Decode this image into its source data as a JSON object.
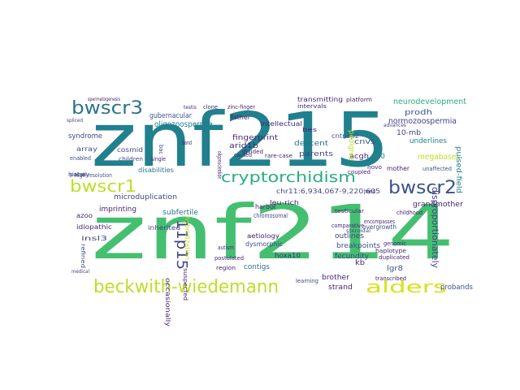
{
  "palette": {
    "teal": "#21808d",
    "green": "#44bf70",
    "lime": "#bddf26",
    "blue": "#2c728e",
    "purple": "#482475",
    "indigo": "#3b528b",
    "dark": "#414487",
    "mint": "#5ec962",
    "yellow": "#d8e219",
    "seagreen": "#28ae80"
  },
  "words": [
    "znf215",
    "znf214",
    "beckwith-wiedemann",
    "bwscr3",
    "bwscr1",
    "bwscr2",
    "cryptorchidism",
    "alders",
    "11p15",
    "disproportionately",
    "neurodevelopment",
    "normozoospermia",
    "oligozoospermia",
    "fingerprint",
    "megabases",
    "grandmother",
    "pulsed-field",
    "microduplication",
    "gubernacular",
    "transmitting",
    "underlines",
    "syndrome",
    "imprinting",
    "subfertile",
    "parents",
    "descent",
    "arid1b",
    "cosmid",
    "prodh",
    "acgh",
    "a10",
    "cnvs",
    "mother",
    "intellectual",
    "cntnap2",
    "pedigree",
    "10-mb",
    "outlines",
    "breakpoints",
    "fecundity",
    "contigs",
    "dysmorphic",
    "aetiology",
    "leu-rich",
    "chr11:6,934,067-9,220,605",
    "probands",
    "strand",
    "brother",
    "lgr8",
    "kb",
    "chromosomal",
    "harbor",
    "overgrowth",
    "hoxa10",
    "inherited",
    "occasionally",
    "hybridization",
    "idiopathic",
    "azoo",
    "insl3",
    "refined",
    "disabilities",
    "high-resolution",
    "array",
    "enabled",
    "history",
    "panel",
    "spliced",
    "medical",
    "children",
    "single",
    "bac",
    "band",
    "father",
    "clone",
    "testis",
    "zinc-finger",
    "intervals",
    "platform",
    "novo",
    "hand",
    "childhood",
    "genomic",
    "duplicated",
    "transcribed",
    "learning",
    "haplotype",
    "encompasses",
    "steroidal",
    "comparative",
    "testicular",
    "autism",
    "region",
    "postulated",
    "suspected",
    "rare-case",
    "bes",
    "divided",
    "caused",
    "oligonucleotide",
    "coupled",
    "unaffected",
    "advances",
    "spermatogenesis"
  ]
}
